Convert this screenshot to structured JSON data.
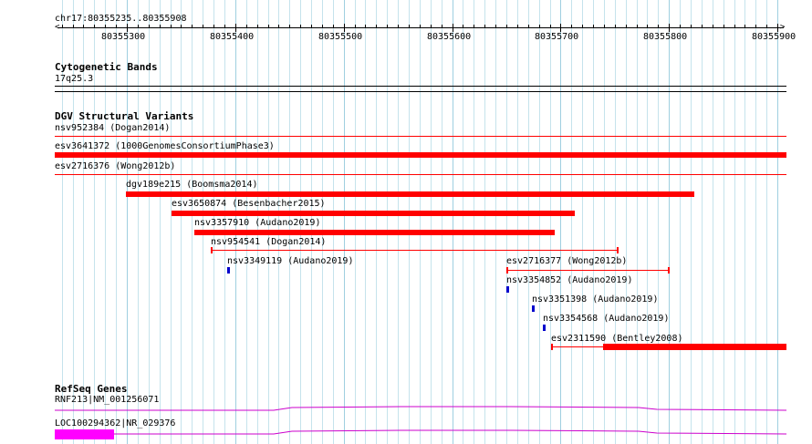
{
  "ruler": {
    "range_label": "chr17:80355235..80355908",
    "tick_labels": [
      "80355300",
      "80355400",
      "80355500",
      "80355600",
      "80355700",
      "80355800",
      "80355900"
    ]
  },
  "cytobands": {
    "title": "Cytogenetic Bands",
    "band_label": "17q25.3"
  },
  "dgv": {
    "title": "DGV Structural Variants",
    "features": [
      {
        "label": "nsv952384 (Dogan2014)",
        "style": "thin",
        "spans_view": true
      },
      {
        "label": "esv3641372 (1000GenomesConsortiumPhase3)",
        "style": "thick",
        "spans_view": true
      },
      {
        "label": "esv2716376 (Wong2012b)",
        "style": "thin",
        "spans_view": true
      },
      {
        "label": "dgv189e215 (Boomsma2014)",
        "style": "thick"
      },
      {
        "label": "esv3650874 (Besenbacher2015)",
        "style": "thick"
      },
      {
        "label": "nsv3357910 (Audano2019)",
        "style": "thick"
      },
      {
        "label": "nsv954541 (Dogan2014)",
        "style": "capped"
      },
      {
        "label": "nsv3349119 (Audano2019)",
        "style": "marker"
      },
      {
        "label": "esv2716377 (Wong2012b)",
        "style": "capped"
      },
      {
        "label": "nsv3354852 (Audano2019)",
        "style": "marker"
      },
      {
        "label": "nsv3351398 (Audano2019)",
        "style": "marker"
      },
      {
        "label": "nsv3354568 (Audano2019)",
        "style": "marker"
      },
      {
        "label": "esv2311590 (Bentley2008)",
        "style": "capped_thick"
      }
    ]
  },
  "refseq": {
    "title": "RefSeq Genes",
    "genes": [
      {
        "label": "RNF213|NM_001256071"
      },
      {
        "label": "LOC100294362|NR_029376"
      }
    ]
  },
  "colors": {
    "variant": "#ff0000",
    "insertion_marker": "#0000cc",
    "gene": "#cc00cc",
    "gene_exon": "#ff00ff",
    "grid": "#c5e3ec",
    "grid_major": "#9fcfe0"
  }
}
